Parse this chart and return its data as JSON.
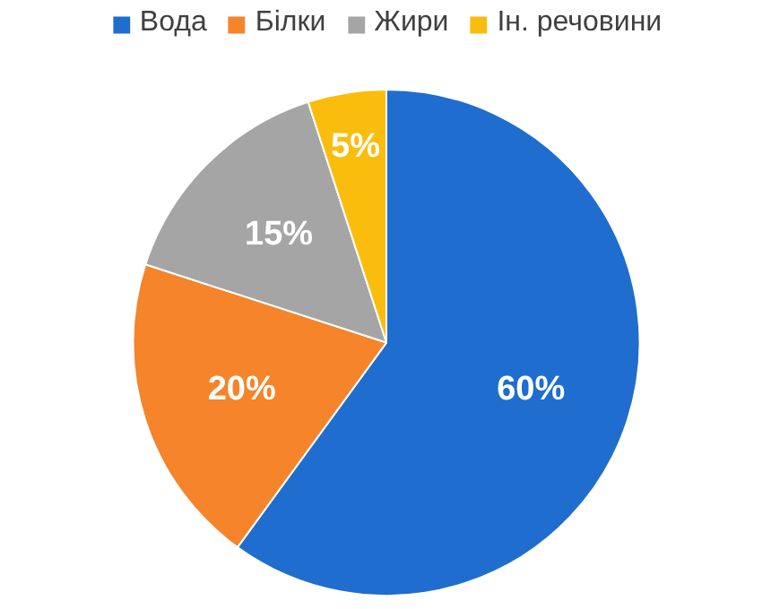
{
  "chart_data": {
    "type": "pie",
    "categories": [
      "Вода",
      "Білки",
      "Жири",
      "Ін. речовини"
    ],
    "values": [
      60,
      20,
      15,
      5
    ],
    "colors": [
      "#1f6dce",
      "#f5842a",
      "#a5a5a5",
      "#fbbd0d"
    ],
    "value_labels": [
      "60%",
      "20%",
      "15%",
      "5%"
    ],
    "legend": "top"
  }
}
